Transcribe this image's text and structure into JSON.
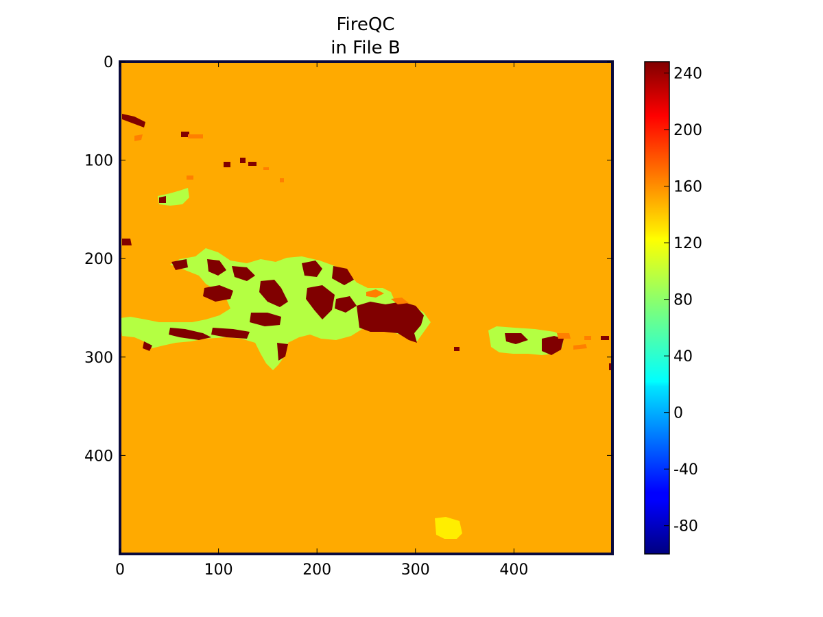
{
  "chart_data": {
    "type": "heatmap",
    "title": "FireQC",
    "subtitle": "in File B",
    "xlabel": "",
    "ylabel": "",
    "xlim": [
      0,
      500
    ],
    "ylim": [
      500,
      0
    ],
    "x_ticks": [
      0,
      100,
      200,
      300,
      400
    ],
    "y_ticks": [
      0,
      100,
      200,
      300,
      400
    ],
    "colormap": "jet",
    "colorbar": {
      "range": [
        -100,
        248
      ],
      "ticks": [
        -80,
        -40,
        0,
        40,
        80,
        120,
        160,
        200,
        240
      ],
      "tick_labels": [
        "-80",
        "-40",
        "0",
        "40",
        "80",
        "120",
        "160",
        "200",
        "240"
      ]
    },
    "background_value": 160,
    "regions": [
      {
        "name": "hispaniola-land",
        "value": 100
      },
      {
        "name": "hispaniola-high",
        "value": 245
      },
      {
        "name": "puerto-rico-land",
        "value": 100
      },
      {
        "name": "puerto-rico-high",
        "value": 245
      },
      {
        "name": "small-islands-high",
        "value": 245
      },
      {
        "name": "coastal-fringe",
        "value": 180
      },
      {
        "name": "southern-patch",
        "value": 130
      }
    ],
    "colors": {
      "background": "#ffaa00",
      "land": "#b4ff42",
      "high": "#800000",
      "fringe": "#ff7f00",
      "patch": "#ffee00",
      "frame": "#0a0a3c"
    }
  }
}
